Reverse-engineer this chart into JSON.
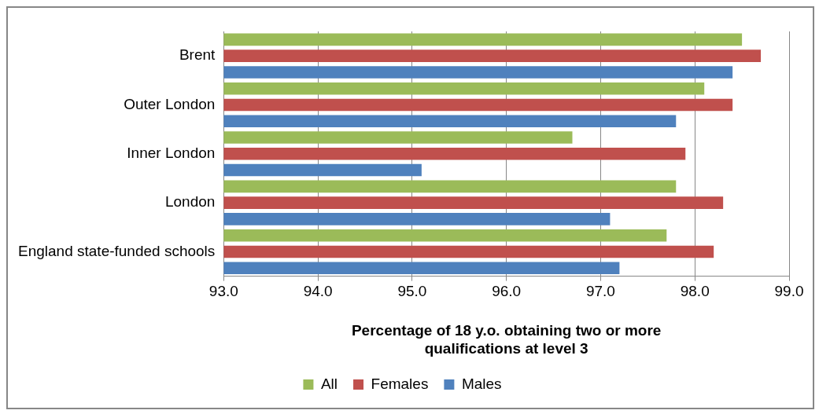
{
  "chart_data": {
    "type": "bar",
    "orientation": "horizontal",
    "xlabel": "Percentage of 18 y.o. obtaining two or more\nqualifications at level 3",
    "categories": [
      "Brent",
      "Outer London",
      "Inner London",
      "London",
      "England state-funded schools"
    ],
    "series": [
      {
        "name": "All",
        "color": "#9bbb59",
        "values": [
          98.5,
          98.1,
          96.7,
          97.8,
          97.7
        ]
      },
      {
        "name": "Females",
        "color": "#c0504d",
        "values": [
          98.7,
          98.4,
          97.9,
          98.3,
          98.2
        ]
      },
      {
        "name": "Males",
        "color": "#4f81bd",
        "values": [
          98.4,
          97.8,
          95.1,
          97.1,
          97.2
        ]
      }
    ],
    "xlim": [
      93,
      99
    ],
    "xticks": [
      {
        "value": 93,
        "label": "93.0"
      },
      {
        "value": 94,
        "label": "94.0"
      },
      {
        "value": 95,
        "label": "95.0"
      },
      {
        "value": 96,
        "label": "96.0"
      },
      {
        "value": 97,
        "label": "97.0"
      },
      {
        "value": 98,
        "label": "98.0"
      },
      {
        "value": 99,
        "label": "99.0"
      }
    ],
    "grid": "x",
    "legend": "bottom"
  }
}
